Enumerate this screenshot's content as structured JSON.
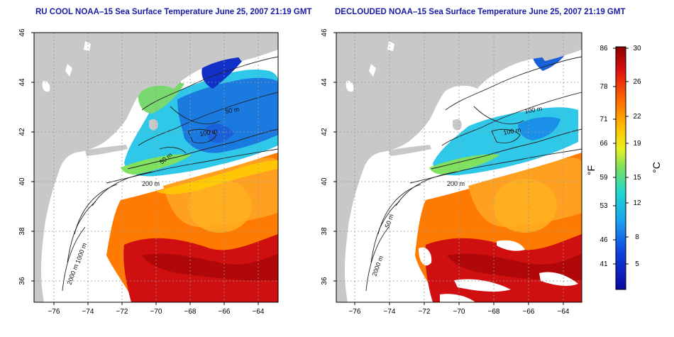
{
  "panels": [
    {
      "title": "RU COOL NOAA–15 Sea Surface Temperature June 25, 2007 21:19 GMT",
      "contour_labels": [
        "50 m",
        "100 m",
        "200 m",
        "1000 m",
        "2000 m",
        "50 m"
      ]
    },
    {
      "title": "DECLOUDED NOAA–15 Sea Surface Temperature June 25, 2007 21:19 GMT",
      "contour_labels": [
        "100 m",
        "100 m",
        "200 m",
        "50 m",
        "2000 m"
      ]
    }
  ],
  "axes": {
    "x_ticks": [
      "−76",
      "−74",
      "−72",
      "−70",
      "−68",
      "−66",
      "−64"
    ],
    "y_ticks": [
      "46",
      "44",
      "42",
      "40",
      "38",
      "36"
    ]
  },
  "colorbar": {
    "fahrenheit_ticks": [
      "86",
      "78",
      "71",
      "66",
      "59",
      "53",
      "46",
      "41"
    ],
    "celsius_ticks": [
      "30",
      "26",
      "22",
      "19",
      "15",
      "12",
      "8",
      "5"
    ],
    "fahrenheit_unit": "°F",
    "celsius_unit": "°C",
    "colors": [
      "#8b0000",
      "#e01010",
      "#ff6a00",
      "#ffc400",
      "#e8f020",
      "#78e060",
      "#20d8d0",
      "#1aa0f0",
      "#1040e0",
      "#0a0aa0"
    ]
  },
  "colors": {
    "land": "#c8c8c8",
    "title": "#1a1aa6",
    "grid": "#999999",
    "contour": "#222222"
  }
}
